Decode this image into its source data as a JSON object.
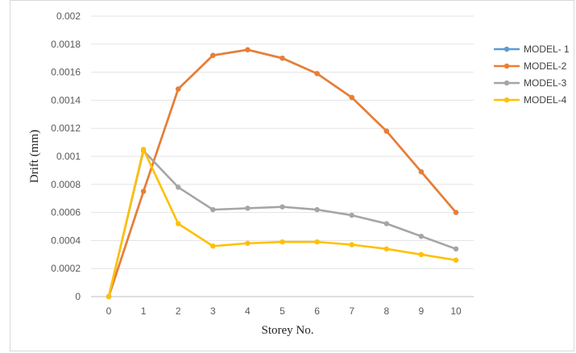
{
  "chart_data": {
    "type": "line",
    "title": "",
    "xlabel": "Storey No.",
    "ylabel": "Drift (mm)",
    "x": [
      0,
      1,
      2,
      3,
      4,
      5,
      6,
      7,
      8,
      9,
      10
    ],
    "ylim": [
      0,
      0.002
    ],
    "yticks": [
      "0",
      "0.0002",
      "0.0004",
      "0.0006",
      "0.0008",
      "0.001",
      "0.0012",
      "0.0014",
      "0.0016",
      "0.0018",
      "0.002"
    ],
    "grid": true,
    "legend_position": "right",
    "series": [
      {
        "name": "MODEL- 1",
        "color": "#5B9BD5",
        "values": [
          0,
          0.00075,
          0.00148,
          0.00172,
          0.00176,
          0.0017,
          0.00159,
          0.00142,
          0.00118,
          0.00089,
          0.0006
        ]
      },
      {
        "name": "MODEL-2",
        "color": "#ED7D31",
        "values": [
          0,
          0.00075,
          0.00148,
          0.00172,
          0.00176,
          0.0017,
          0.00159,
          0.00142,
          0.00118,
          0.00089,
          0.0006
        ]
      },
      {
        "name": "MODEL-3",
        "color": "#A5A5A5",
        "values": [
          0,
          0.00104,
          0.00078,
          0.00062,
          0.00063,
          0.00064,
          0.00062,
          0.00058,
          0.00052,
          0.00043,
          0.00034
        ]
      },
      {
        "name": "MODEL-4",
        "color": "#FFC000",
        "values": [
          0,
          0.00105,
          0.00052,
          0.00036,
          0.00038,
          0.00039,
          0.00039,
          0.00037,
          0.00034,
          0.0003,
          0.00026
        ]
      }
    ]
  }
}
